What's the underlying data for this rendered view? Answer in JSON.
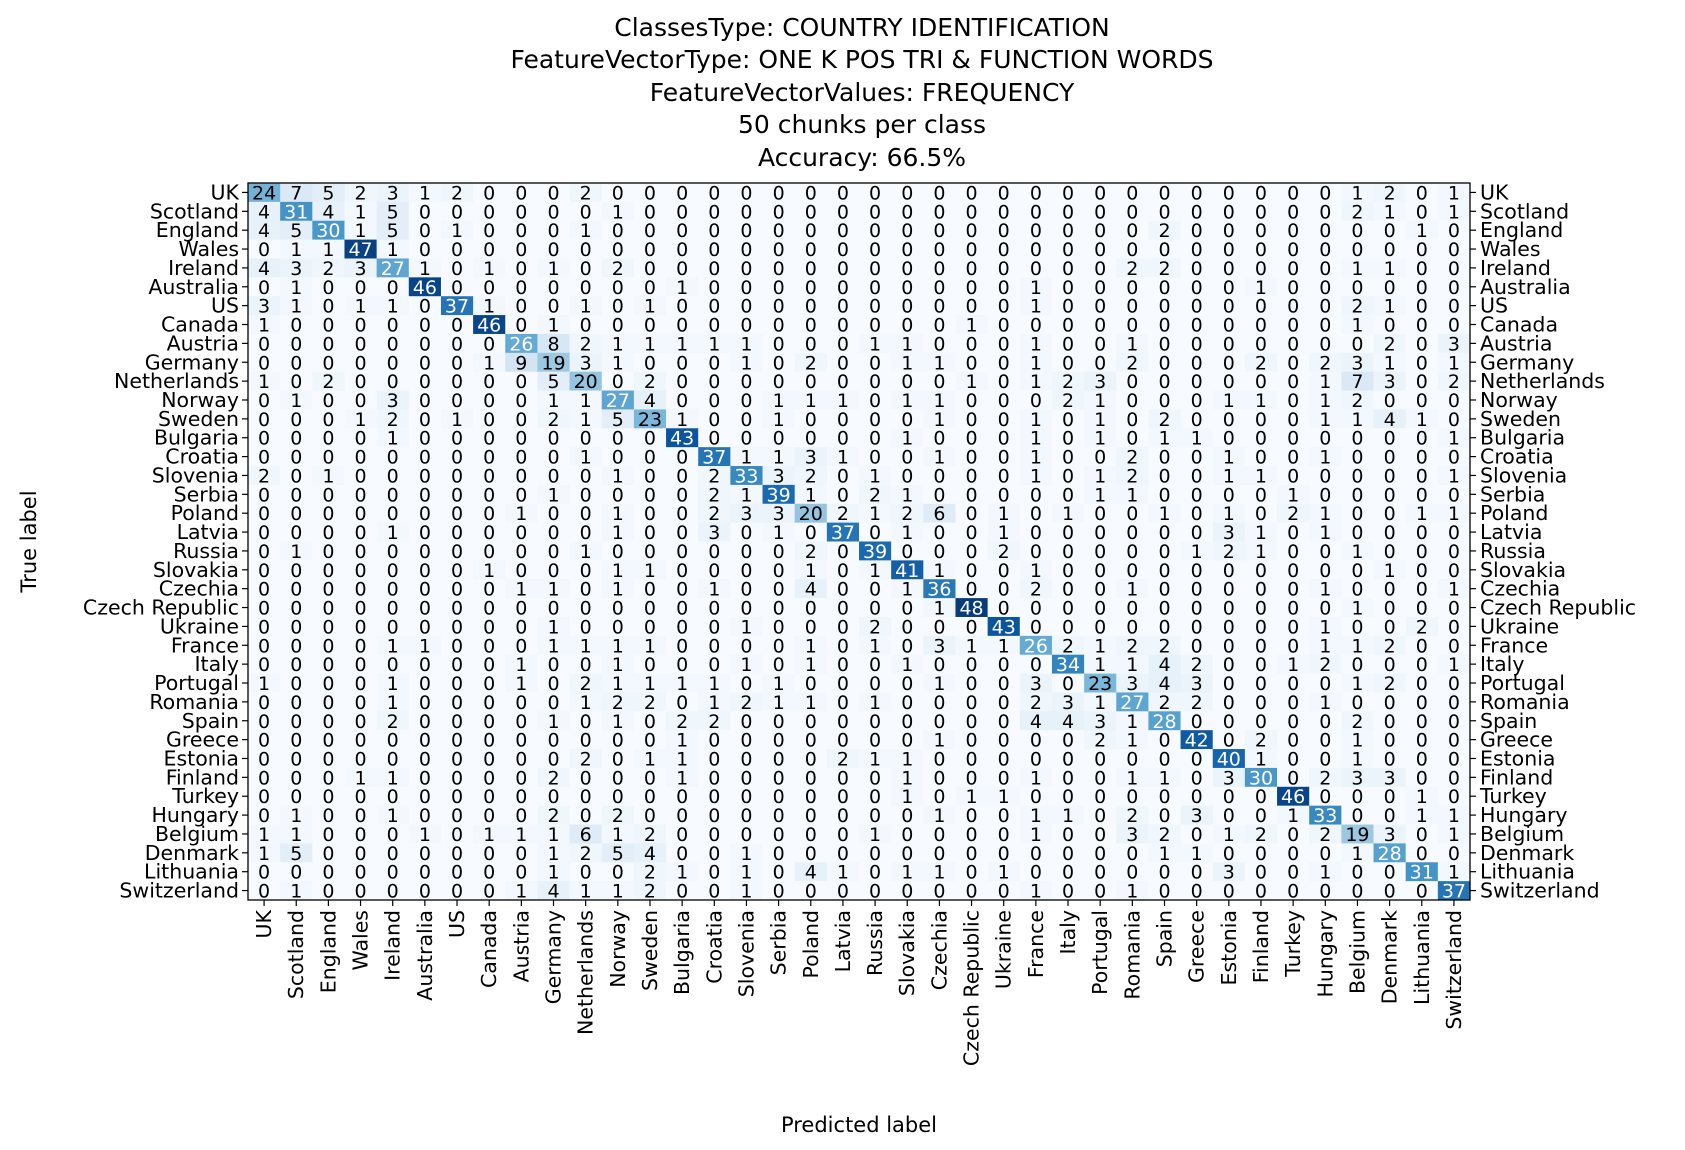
{
  "chart_data": {
    "type": "heatmap",
    "title_lines": [
      "ClassesType: COUNTRY IDENTIFICATION",
      "FeatureVectorType: ONE K POS TRI & FUNCTION WORDS",
      "FeatureVectorValues: FREQUENCY",
      "50 chunks per class",
      "Accuracy: 66.5%"
    ],
    "xlabel": "Predicted label",
    "ylabel": "True label",
    "colormap": "Blues",
    "value_range": [
      0,
      50
    ],
    "labels": [
      "UK",
      "Scotland",
      "England",
      "Wales",
      "Ireland",
      "Australia",
      "US",
      "Canada",
      "Austria",
      "Germany",
      "Netherlands",
      "Norway",
      "Sweden",
      "Bulgaria",
      "Croatia",
      "Slovenia",
      "Serbia",
      "Poland",
      "Latvia",
      "Russia",
      "Slovakia",
      "Czechia",
      "Czech Republic",
      "Ukraine",
      "France",
      "Italy",
      "Portugal",
      "Romania",
      "Spain",
      "Greece",
      "Estonia",
      "Finland",
      "Turkey",
      "Hungary",
      "Belgium",
      "Denmark",
      "Lithuania",
      "Switzerland"
    ],
    "matrix": [
      [
        24,
        7,
        5,
        2,
        3,
        1,
        2,
        0,
        0,
        0,
        2,
        0,
        0,
        0,
        0,
        0,
        0,
        0,
        0,
        0,
        0,
        0,
        0,
        0,
        0,
        0,
        0,
        0,
        0,
        0,
        0,
        0,
        0,
        0,
        1,
        2,
        0,
        1
      ],
      [
        4,
        31,
        4,
        1,
        5,
        0,
        0,
        0,
        0,
        0,
        0,
        1,
        0,
        0,
        0,
        0,
        0,
        0,
        0,
        0,
        0,
        0,
        0,
        0,
        0,
        0,
        0,
        0,
        0,
        0,
        0,
        0,
        0,
        0,
        2,
        1,
        0,
        1
      ],
      [
        4,
        5,
        30,
        1,
        5,
        0,
        1,
        0,
        0,
        0,
        1,
        0,
        0,
        0,
        0,
        0,
        0,
        0,
        0,
        0,
        0,
        0,
        0,
        0,
        0,
        0,
        0,
        0,
        2,
        0,
        0,
        0,
        0,
        0,
        0,
        0,
        1,
        0
      ],
      [
        0,
        1,
        1,
        47,
        1,
        0,
        0,
        0,
        0,
        0,
        0,
        0,
        0,
        0,
        0,
        0,
        0,
        0,
        0,
        0,
        0,
        0,
        0,
        0,
        0,
        0,
        0,
        0,
        0,
        0,
        0,
        0,
        0,
        0,
        0,
        0,
        0,
        0
      ],
      [
        4,
        3,
        2,
        3,
        27,
        1,
        0,
        1,
        0,
        1,
        0,
        2,
        0,
        0,
        0,
        0,
        0,
        0,
        0,
        0,
        0,
        0,
        0,
        0,
        0,
        0,
        0,
        2,
        2,
        0,
        0,
        0,
        0,
        0,
        1,
        1,
        0,
        0
      ],
      [
        0,
        1,
        0,
        0,
        0,
        46,
        0,
        0,
        0,
        0,
        0,
        0,
        0,
        1,
        0,
        0,
        0,
        0,
        0,
        0,
        0,
        0,
        0,
        0,
        1,
        0,
        0,
        0,
        0,
        0,
        0,
        1,
        0,
        0,
        0,
        0,
        0,
        0
      ],
      [
        3,
        1,
        0,
        1,
        1,
        0,
        37,
        1,
        0,
        0,
        1,
        0,
        1,
        0,
        0,
        0,
        0,
        0,
        0,
        0,
        0,
        0,
        0,
        0,
        1,
        0,
        0,
        0,
        0,
        0,
        0,
        0,
        0,
        0,
        2,
        1,
        0,
        0
      ],
      [
        1,
        0,
        0,
        0,
        0,
        0,
        0,
        46,
        0,
        1,
        0,
        0,
        0,
        0,
        0,
        0,
        0,
        0,
        0,
        0,
        0,
        0,
        1,
        0,
        0,
        0,
        0,
        0,
        0,
        0,
        0,
        0,
        0,
        0,
        1,
        0,
        0,
        0
      ],
      [
        0,
        0,
        0,
        0,
        0,
        0,
        0,
        0,
        26,
        8,
        2,
        1,
        1,
        1,
        1,
        1,
        0,
        0,
        0,
        1,
        1,
        0,
        0,
        0,
        1,
        0,
        0,
        1,
        0,
        0,
        0,
        0,
        0,
        0,
        0,
        2,
        0,
        3
      ],
      [
        0,
        0,
        0,
        0,
        0,
        0,
        0,
        1,
        9,
        19,
        3,
        1,
        0,
        0,
        0,
        1,
        0,
        2,
        0,
        0,
        1,
        1,
        0,
        0,
        1,
        0,
        0,
        2,
        0,
        0,
        0,
        2,
        0,
        2,
        3,
        1,
        0,
        1
      ],
      [
        1,
        0,
        2,
        0,
        0,
        0,
        0,
        0,
        0,
        5,
        20,
        0,
        2,
        0,
        0,
        0,
        0,
        0,
        0,
        0,
        0,
        0,
        1,
        0,
        1,
        2,
        3,
        0,
        0,
        0,
        0,
        0,
        0,
        1,
        7,
        3,
        0,
        2
      ],
      [
        0,
        1,
        0,
        0,
        3,
        0,
        0,
        0,
        0,
        1,
        1,
        27,
        4,
        0,
        0,
        0,
        1,
        1,
        1,
        0,
        1,
        1,
        0,
        0,
        0,
        2,
        1,
        0,
        0,
        0,
        1,
        1,
        0,
        1,
        2,
        0,
        0,
        0
      ],
      [
        0,
        0,
        0,
        1,
        2,
        0,
        1,
        0,
        0,
        2,
        1,
        5,
        23,
        1,
        0,
        0,
        1,
        0,
        0,
        0,
        0,
        1,
        0,
        0,
        1,
        0,
        1,
        0,
        2,
        0,
        0,
        0,
        0,
        1,
        1,
        4,
        1,
        0
      ],
      [
        0,
        0,
        0,
        0,
        1,
        0,
        0,
        0,
        0,
        0,
        0,
        0,
        0,
        43,
        0,
        0,
        0,
        0,
        0,
        0,
        1,
        0,
        0,
        0,
        1,
        0,
        1,
        0,
        1,
        1,
        0,
        0,
        0,
        0,
        0,
        0,
        0,
        1
      ],
      [
        0,
        0,
        0,
        0,
        0,
        0,
        0,
        0,
        0,
        0,
        1,
        0,
        0,
        0,
        37,
        1,
        1,
        3,
        1,
        0,
        0,
        1,
        0,
        0,
        1,
        0,
        0,
        2,
        0,
        0,
        1,
        0,
        0,
        1,
        0,
        0,
        0,
        0
      ],
      [
        2,
        0,
        1,
        0,
        0,
        0,
        0,
        0,
        0,
        0,
        0,
        1,
        0,
        0,
        2,
        33,
        3,
        2,
        0,
        1,
        0,
        0,
        0,
        0,
        1,
        0,
        1,
        2,
        0,
        0,
        1,
        1,
        0,
        0,
        0,
        0,
        0,
        1
      ],
      [
        0,
        0,
        0,
        0,
        0,
        0,
        0,
        0,
        0,
        1,
        0,
        0,
        0,
        0,
        2,
        1,
        39,
        1,
        0,
        2,
        1,
        0,
        0,
        0,
        0,
        0,
        1,
        1,
        0,
        0,
        0,
        0,
        1,
        0,
        0,
        0,
        0,
        0
      ],
      [
        0,
        0,
        0,
        0,
        0,
        0,
        0,
        0,
        1,
        0,
        0,
        1,
        0,
        0,
        2,
        3,
        3,
        20,
        2,
        1,
        2,
        6,
        0,
        1,
        0,
        1,
        0,
        0,
        1,
        0,
        1,
        0,
        2,
        1,
        0,
        0,
        1,
        1
      ],
      [
        0,
        0,
        0,
        0,
        1,
        0,
        0,
        0,
        0,
        0,
        0,
        1,
        0,
        0,
        3,
        0,
        1,
        0,
        37,
        0,
        1,
        0,
        0,
        1,
        0,
        0,
        0,
        0,
        0,
        0,
        3,
        1,
        0,
        1,
        0,
        0,
        0,
        0
      ],
      [
        0,
        1,
        0,
        0,
        0,
        0,
        0,
        0,
        0,
        0,
        1,
        0,
        0,
        0,
        0,
        0,
        0,
        2,
        0,
        39,
        0,
        0,
        0,
        2,
        0,
        0,
        0,
        0,
        0,
        1,
        2,
        1,
        0,
        0,
        1,
        0,
        0,
        0
      ],
      [
        0,
        0,
        0,
        0,
        0,
        0,
        0,
        1,
        0,
        0,
        0,
        1,
        1,
        0,
        0,
        0,
        0,
        1,
        0,
        1,
        41,
        1,
        0,
        0,
        1,
        0,
        0,
        0,
        0,
        0,
        0,
        0,
        0,
        0,
        0,
        1,
        0,
        0
      ],
      [
        0,
        0,
        0,
        0,
        0,
        0,
        0,
        0,
        1,
        1,
        0,
        1,
        0,
        0,
        1,
        0,
        0,
        4,
        0,
        0,
        1,
        36,
        0,
        0,
        2,
        0,
        0,
        1,
        0,
        0,
        0,
        0,
        0,
        1,
        0,
        0,
        0,
        1
      ],
      [
        0,
        0,
        0,
        0,
        0,
        0,
        0,
        0,
        0,
        0,
        0,
        0,
        0,
        0,
        0,
        0,
        0,
        0,
        0,
        0,
        0,
        1,
        48,
        0,
        0,
        0,
        0,
        0,
        0,
        0,
        0,
        0,
        0,
        0,
        1,
        0,
        0,
        0
      ],
      [
        0,
        0,
        0,
        0,
        0,
        0,
        0,
        0,
        0,
        1,
        0,
        0,
        0,
        0,
        0,
        1,
        0,
        0,
        0,
        2,
        0,
        0,
        0,
        43,
        0,
        0,
        0,
        0,
        0,
        0,
        0,
        0,
        0,
        1,
        0,
        0,
        2,
        0
      ],
      [
        0,
        0,
        0,
        0,
        1,
        1,
        0,
        0,
        0,
        1,
        1,
        1,
        1,
        0,
        0,
        0,
        0,
        1,
        0,
        1,
        0,
        3,
        1,
        1,
        26,
        2,
        1,
        2,
        2,
        0,
        0,
        0,
        0,
        1,
        1,
        2,
        0,
        0
      ],
      [
        0,
        0,
        0,
        0,
        0,
        0,
        0,
        0,
        1,
        0,
        0,
        1,
        0,
        0,
        0,
        1,
        0,
        1,
        0,
        0,
        1,
        0,
        0,
        0,
        0,
        34,
        1,
        1,
        4,
        2,
        0,
        0,
        1,
        2,
        0,
        0,
        0,
        1
      ],
      [
        1,
        0,
        0,
        0,
        1,
        0,
        0,
        0,
        1,
        0,
        2,
        1,
        1,
        1,
        1,
        0,
        1,
        0,
        0,
        0,
        0,
        1,
        0,
        0,
        3,
        0,
        23,
        3,
        4,
        3,
        0,
        0,
        0,
        0,
        1,
        2,
        0,
        0
      ],
      [
        0,
        0,
        0,
        0,
        1,
        0,
        0,
        0,
        0,
        0,
        1,
        2,
        2,
        0,
        1,
        2,
        1,
        1,
        0,
        1,
        0,
        0,
        0,
        0,
        2,
        3,
        1,
        27,
        2,
        2,
        0,
        0,
        0,
        1,
        0,
        0,
        0,
        0
      ],
      [
        0,
        0,
        0,
        0,
        2,
        0,
        0,
        0,
        0,
        1,
        0,
        1,
        0,
        2,
        2,
        0,
        0,
        0,
        0,
        0,
        0,
        0,
        0,
        0,
        4,
        4,
        3,
        1,
        28,
        0,
        0,
        0,
        0,
        0,
        2,
        0,
        0,
        0
      ],
      [
        0,
        0,
        0,
        0,
        0,
        0,
        0,
        0,
        0,
        0,
        0,
        0,
        0,
        1,
        0,
        0,
        0,
        0,
        0,
        0,
        0,
        1,
        0,
        0,
        0,
        0,
        2,
        1,
        0,
        42,
        0,
        2,
        0,
        0,
        1,
        0,
        0,
        0
      ],
      [
        0,
        0,
        0,
        0,
        0,
        0,
        0,
        0,
        0,
        0,
        2,
        0,
        1,
        1,
        0,
        0,
        0,
        0,
        2,
        1,
        1,
        0,
        0,
        0,
        0,
        0,
        0,
        0,
        0,
        0,
        40,
        1,
        0,
        0,
        1,
        0,
        0,
        0
      ],
      [
        0,
        0,
        0,
        1,
        1,
        0,
        0,
        0,
        0,
        2,
        0,
        0,
        0,
        1,
        0,
        0,
        0,
        0,
        0,
        0,
        1,
        0,
        0,
        0,
        1,
        0,
        0,
        1,
        1,
        0,
        3,
        30,
        0,
        2,
        3,
        3,
        0,
        0
      ],
      [
        0,
        0,
        0,
        0,
        0,
        0,
        0,
        0,
        0,
        0,
        0,
        0,
        0,
        0,
        0,
        0,
        0,
        0,
        0,
        0,
        1,
        0,
        1,
        1,
        0,
        0,
        0,
        0,
        0,
        0,
        0,
        0,
        46,
        0,
        0,
        0,
        1,
        0
      ],
      [
        0,
        1,
        0,
        0,
        1,
        0,
        0,
        0,
        0,
        2,
        0,
        2,
        0,
        0,
        0,
        0,
        0,
        0,
        0,
        0,
        0,
        1,
        0,
        0,
        1,
        1,
        0,
        2,
        0,
        3,
        0,
        0,
        1,
        33,
        0,
        0,
        1,
        1
      ],
      [
        1,
        1,
        0,
        0,
        0,
        1,
        0,
        1,
        1,
        1,
        6,
        1,
        2,
        0,
        0,
        0,
        0,
        0,
        0,
        1,
        0,
        0,
        0,
        0,
        1,
        0,
        0,
        3,
        2,
        0,
        1,
        2,
        0,
        2,
        19,
        3,
        0,
        1
      ],
      [
        1,
        5,
        0,
        0,
        0,
        0,
        0,
        0,
        0,
        1,
        2,
        5,
        4,
        0,
        0,
        1,
        0,
        0,
        0,
        0,
        0,
        0,
        0,
        0,
        0,
        0,
        0,
        0,
        1,
        1,
        0,
        0,
        0,
        0,
        1,
        28,
        0,
        0
      ],
      [
        0,
        0,
        0,
        0,
        0,
        0,
        0,
        0,
        0,
        1,
        0,
        0,
        2,
        1,
        0,
        1,
        0,
        4,
        1,
        0,
        1,
        1,
        0,
        1,
        0,
        0,
        0,
        0,
        0,
        0,
        3,
        0,
        0,
        1,
        0,
        0,
        31,
        1
      ],
      [
        0,
        1,
        0,
        0,
        0,
        0,
        0,
        0,
        1,
        4,
        1,
        1,
        2,
        0,
        0,
        1,
        0,
        0,
        0,
        0,
        0,
        0,
        0,
        0,
        1,
        0,
        0,
        1,
        0,
        0,
        0,
        0,
        0,
        0,
        0,
        0,
        0,
        37
      ]
    ]
  }
}
